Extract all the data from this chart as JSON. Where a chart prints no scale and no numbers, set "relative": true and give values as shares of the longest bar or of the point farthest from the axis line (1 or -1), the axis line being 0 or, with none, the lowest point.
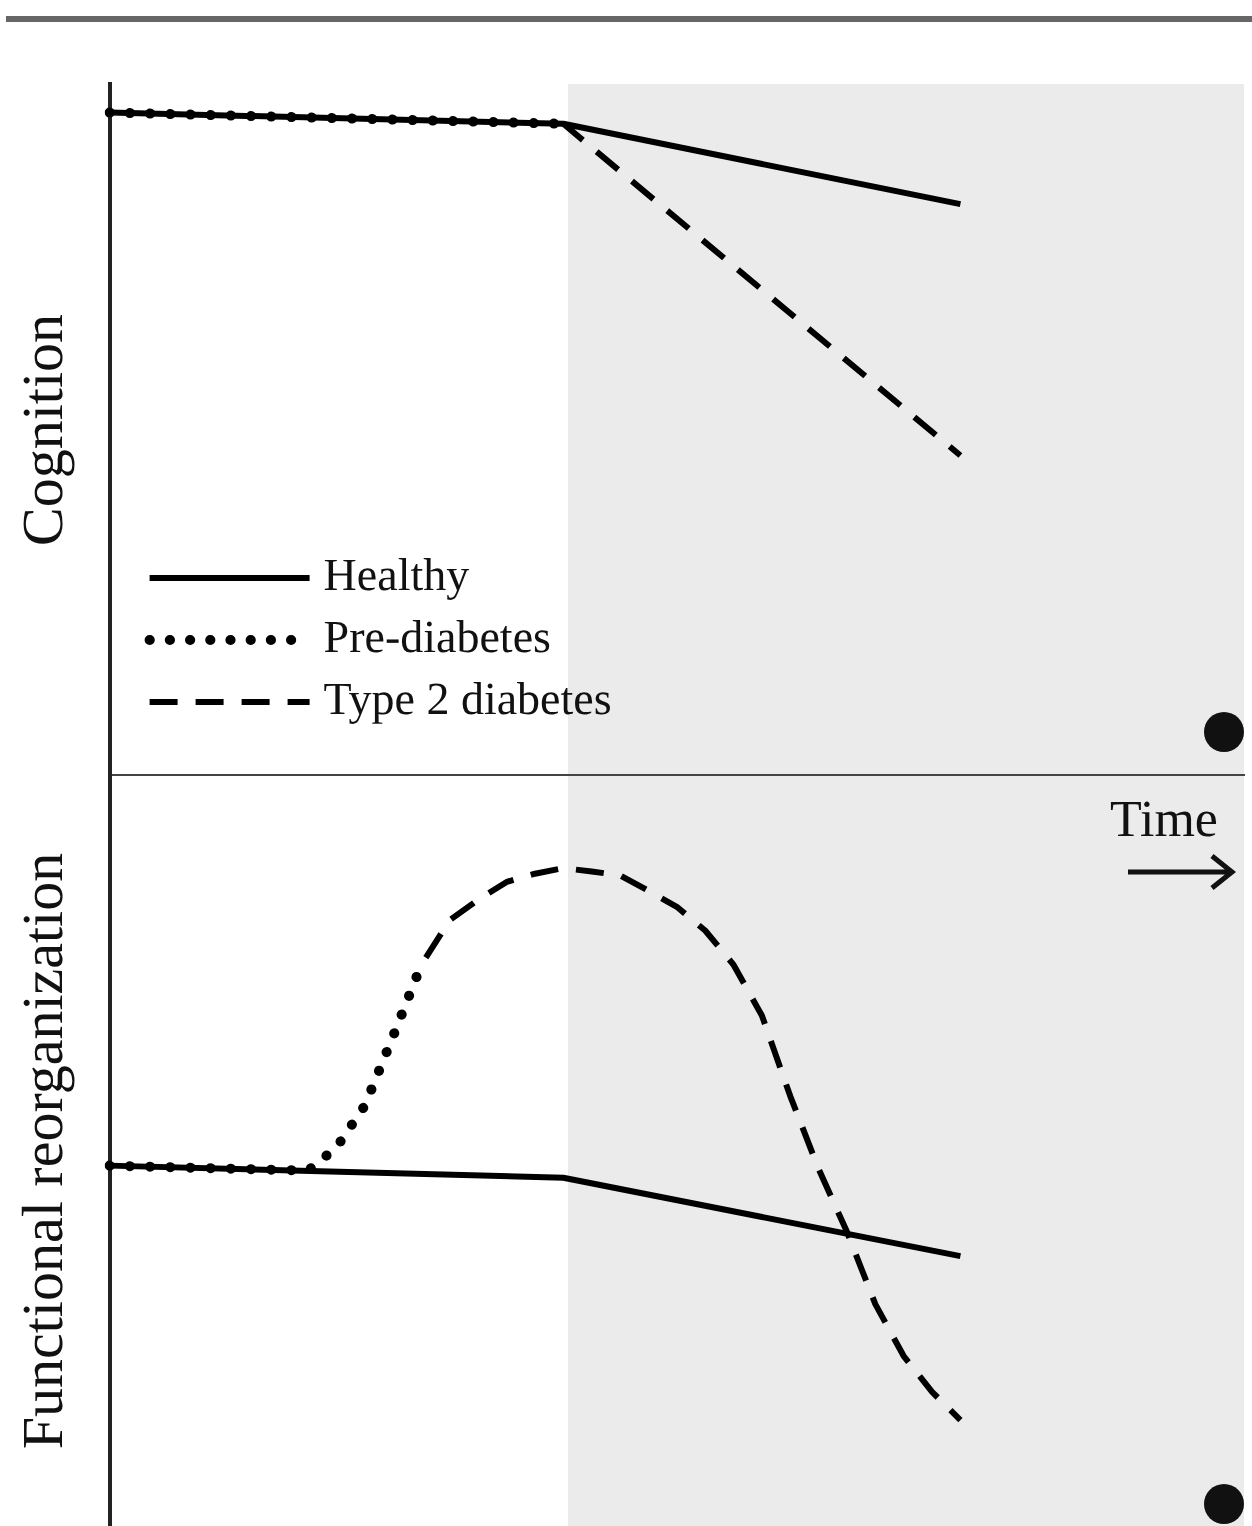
{
  "chart_data": [
    {
      "type": "line",
      "ylabel": "Cognition",
      "relative": true,
      "grid": false,
      "legend": "bottom left",
      "categories": [
        null,
        null,
        null,
        null,
        null,
        null,
        null,
        null,
        null,
        null,
        null,
        null,
        null,
        null,
        null,
        null,
        null,
        null,
        null,
        null,
        null,
        null,
        null,
        null,
        null,
        null,
        null,
        null,
        null,
        null,
        null,
        null,
        null,
        null,
        null,
        null,
        null,
        null,
        null,
        null,
        null
      ],
      "series": [
        {
          "name": "Healthy",
          "color": "#000000",
          "line_style": "solid",
          "values": [
            1,
            null,
            null,
            null,
            null,
            null,
            null,
            null,
            null,
            null,
            null,
            null,
            null,
            null,
            null,
            null,
            0.983,
            null,
            null,
            null,
            null,
            null,
            null,
            null,
            null,
            null,
            null,
            null,
            null,
            null,
            0.862,
            null,
            null,
            null,
            null,
            null,
            null,
            null,
            null,
            null,
            null
          ]
        },
        {
          "name": "Pre-diabetes",
          "color": "#000000",
          "line_style": "dotted",
          "values": [
            1,
            null,
            null,
            null,
            null,
            null,
            null,
            null,
            null,
            null,
            null,
            null,
            null,
            null,
            null,
            null,
            0.983,
            null,
            null,
            null,
            null,
            null,
            null,
            null,
            null,
            null,
            null,
            null,
            null,
            null,
            null,
            null,
            null,
            null,
            null,
            null,
            null,
            null,
            null,
            null,
            null
          ]
        },
        {
          "name": "Type 2 diabetes",
          "color": "#000000",
          "line_style": "dashed",
          "values": [
            null,
            null,
            null,
            null,
            null,
            null,
            null,
            null,
            null,
            null,
            null,
            null,
            null,
            null,
            null,
            null,
            0.983,
            null,
            null,
            null,
            null,
            null,
            null,
            null,
            null,
            null,
            null,
            null,
            null,
            null,
            0.483,
            null,
            null,
            null,
            null,
            null,
            null,
            null,
            null,
            null,
            null
          ]
        }
      ]
    },
    {
      "type": "line",
      "ylabel": "Functional reorganization",
      "xlabel": "Time",
      "relative": true,
      "grid": false,
      "categories": [
        null,
        null,
        null,
        null,
        null,
        null,
        null,
        null,
        null,
        null,
        null,
        null,
        null,
        null,
        null,
        null,
        null,
        null,
        null,
        null,
        null,
        null,
        null,
        null,
        null,
        null,
        null,
        null,
        null,
        null,
        null,
        null,
        null,
        null,
        null,
        null,
        null,
        null,
        null,
        null,
        null
      ],
      "series": [
        {
          "color": "#000000",
          "line_style": "solid",
          "values": [
            0.461,
            null,
            null,
            null,
            null,
            null,
            null,
            null,
            null,
            null,
            null,
            null,
            null,
            null,
            null,
            null,
            0.439,
            null,
            null,
            null,
            null,
            null,
            null,
            null,
            null,
            null,
            null,
            null,
            null,
            null,
            0.297,
            null,
            null,
            null,
            null,
            null,
            null,
            null,
            null,
            null,
            null
          ]
        },
        {
          "color": "#000000",
          "line_style": "dotted",
          "values": [
            0.461,
            null,
            null,
            null,
            null,
            null,
            null,
            0.452,
            0.494,
            0.57,
            0.696,
            0.826,
            null,
            null,
            null,
            null,
            null,
            null,
            null,
            null,
            null,
            null,
            null,
            null,
            null,
            null,
            null,
            null,
            null,
            null,
            null,
            null,
            null,
            null,
            null,
            null,
            null,
            null,
            null,
            null,
            null
          ]
        },
        {
          "color": "#000000",
          "line_style": "dashed",
          "values": [
            null,
            null,
            null,
            null,
            null,
            null,
            null,
            null,
            null,
            null,
            null,
            0.826,
            0.906,
            0.943,
            0.975,
            0.99,
            1,
            0.994,
            0.987,
            0.959,
            0.93,
            0.887,
            0.825,
            0.733,
            0.587,
            0.455,
            0.341,
            0.21,
            0.116,
            0.051,
            0,
            null,
            null,
            null,
            null,
            null,
            null,
            null,
            null,
            null,
            null
          ]
        }
      ]
    }
  ]
}
